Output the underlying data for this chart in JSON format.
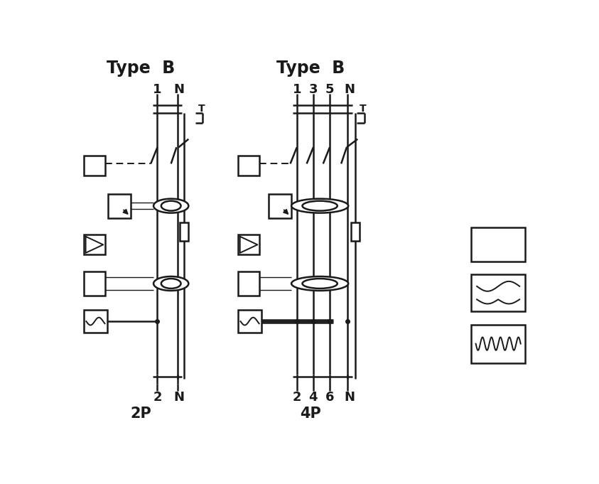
{
  "bg_color": "#ffffff",
  "line_color": "#1a1a1a",
  "title_2p": "Type  B",
  "title_4p": "Type  B",
  "label_2p": "2P",
  "label_4p": "4P",
  "lw": 1.8,
  "lw_thin": 1.0,
  "lw_med": 1.4
}
